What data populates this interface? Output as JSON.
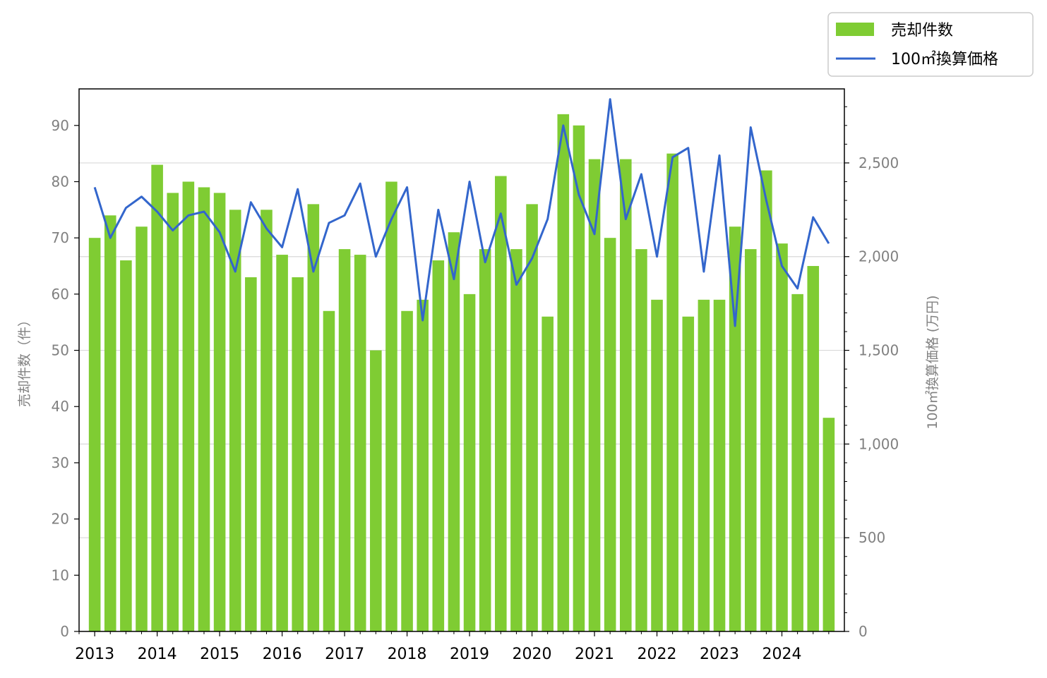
{
  "chart_data": {
    "type": "bar",
    "title": "",
    "xlabel": "",
    "ylabel_left": "売却件数（件）",
    "ylabel_right": "100㎡換算価格 (万円)",
    "x_tick_labels": [
      "2013",
      "2014",
      "2015",
      "2016",
      "2017",
      "2018",
      "2019",
      "2020",
      "2021",
      "2022",
      "2023",
      "2024"
    ],
    "quarters_per_year": 4,
    "ylim_left": [
      0,
      96.5
    ],
    "yticks_left": [
      0,
      10,
      20,
      30,
      40,
      50,
      60,
      70,
      80,
      90
    ],
    "ylim_right": [
      0,
      2895
    ],
    "yticks_right": [
      0,
      500,
      1000,
      1500,
      2000,
      2500
    ],
    "yticks_right_labels": [
      "0",
      "500",
      "1,000",
      "1,500",
      "2,000",
      "2,500"
    ],
    "grid": "horizontal-right-axis",
    "legend_position": "top-right-outside",
    "colors": {
      "bar": "#7fcc33",
      "line": "#3366cc",
      "grid": "#d9d9d9",
      "tick_label": "#808080"
    },
    "series": [
      {
        "name": "売却件数",
        "kind": "bar",
        "axis": "left",
        "values": [
          70,
          74,
          66,
          72,
          83,
          78,
          80,
          79,
          78,
          75,
          63,
          75,
          67,
          63,
          76,
          57,
          68,
          67,
          50,
          80,
          57,
          59,
          66,
          71,
          60,
          68,
          81,
          68,
          76,
          56,
          92,
          90,
          84,
          70,
          84,
          68,
          59,
          85,
          56,
          59,
          59,
          72,
          68,
          82,
          69,
          60,
          65,
          38
        ]
      },
      {
        "name": "100㎡換算価格",
        "kind": "line",
        "axis": "right",
        "values": [
          2370,
          2100,
          2260,
          2320,
          2240,
          2140,
          2220,
          2240,
          2130,
          1920,
          2290,
          2150,
          2050,
          2360,
          1920,
          2180,
          2220,
          2390,
          2000,
          2200,
          2370,
          1660,
          2250,
          1880,
          2400,
          1970,
          2230,
          1850,
          1990,
          2200,
          2700,
          2330,
          2120,
          2840,
          2200,
          2440,
          2000,
          2530,
          2580,
          1920,
          2540,
          1630,
          2690,
          2300,
          1950,
          1830,
          2210,
          2070
        ]
      }
    ]
  }
}
